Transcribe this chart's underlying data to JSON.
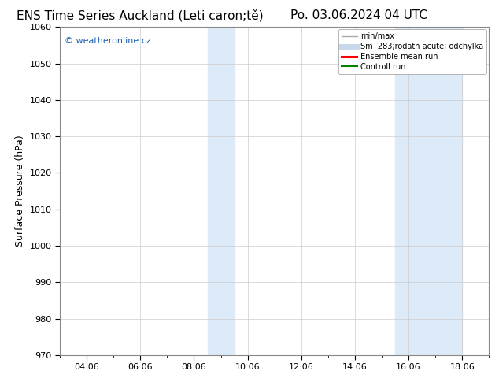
{
  "title_left": "ENS Time Series Auckland (Leti caron;tě)",
  "title_right": "Po. 03.06.2024 04 UTC",
  "ylabel": "Surface Pressure (hPa)",
  "ylim": [
    970,
    1060
  ],
  "yticks": [
    970,
    980,
    990,
    1000,
    1010,
    1020,
    1030,
    1040,
    1050,
    1060
  ],
  "x_tick_labels": [
    "04.06",
    "06.06",
    "08.06",
    "10.06",
    "12.06",
    "14.06",
    "16.06",
    "18.06"
  ],
  "x_tick_positions": [
    2,
    4,
    6,
    8,
    10,
    12,
    14,
    16
  ],
  "xlim": [
    1,
    17
  ],
  "shaded_regions": [
    {
      "xmin": 6.5,
      "xmax": 7.5
    },
    {
      "xmin": 13.5,
      "xmax": 16.0
    }
  ],
  "shade_color": "#ddeaf8",
  "watermark_text": "© weatheronline.cz",
  "watermark_color": "#1a5fb4",
  "legend_entries": [
    {
      "label": "min/max",
      "color": "#aaaaaa",
      "lw": 1.0,
      "ls": "-"
    },
    {
      "label": "Sm  283;rodatn acute; odchylka",
      "color": "#c8d8eb",
      "lw": 5,
      "ls": "-"
    },
    {
      "label": "Ensemble mean run",
      "color": "red",
      "lw": 1.5,
      "ls": "-"
    },
    {
      "label": "Controll run",
      "color": "green",
      "lw": 1.5,
      "ls": "-"
    }
  ],
  "bg_color": "#ffffff",
  "grid_color": "#cccccc",
  "title_fontsize": 11,
  "tick_fontsize": 8,
  "ylabel_fontsize": 9,
  "legend_fontsize": 7
}
